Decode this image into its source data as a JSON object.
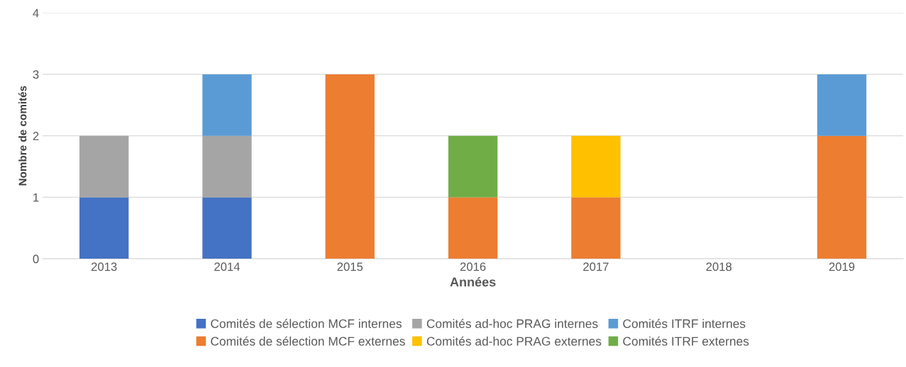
{
  "chart_data": {
    "type": "bar",
    "stacked": true,
    "xlabel": "Années",
    "ylabel": "Nombre de comités",
    "categories": [
      "2013",
      "2014",
      "2015",
      "2016",
      "2017",
      "2018",
      "2019"
    ],
    "series": [
      {
        "name": "Comités de sélection MCF internes",
        "color": "#4472c4",
        "values": [
          1,
          1,
          0,
          0,
          0,
          0,
          0
        ]
      },
      {
        "name": "Comités de sélection MCF externes",
        "color": "#ed7d31",
        "values": [
          0,
          0,
          3,
          1,
          1,
          0,
          2
        ]
      },
      {
        "name": "Comités ad-hoc PRAG internes",
        "color": "#a5a5a5",
        "values": [
          1,
          1,
          0,
          0,
          0,
          0,
          0
        ]
      },
      {
        "name": "Comités ad-hoc PRAG externes",
        "color": "#ffc000",
        "values": [
          0,
          0,
          0,
          0,
          1,
          0,
          0
        ]
      },
      {
        "name": "Comités ITRF internes",
        "color": "#5b9bd5",
        "values": [
          0,
          1,
          0,
          0,
          0,
          0,
          1
        ]
      },
      {
        "name": "Comités ITRF externes",
        "color": "#70ad47",
        "values": [
          0,
          0,
          0,
          1,
          0,
          0,
          0
        ]
      }
    ],
    "ylim": [
      0,
      4
    ],
    "yticks": [
      0,
      1,
      2,
      3,
      4
    ],
    "grid": "y",
    "legend": "bottom"
  }
}
